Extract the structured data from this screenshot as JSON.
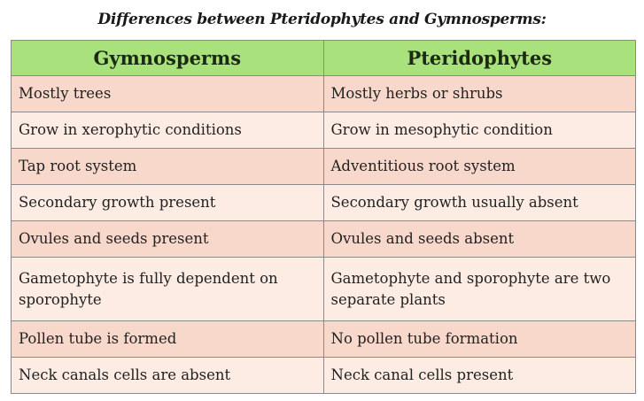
{
  "title": "Differences between Pteridophytes and Gymnosperms:",
  "colors": {
    "header": "#a9e27c",
    "row_dark": "#f9d8cc",
    "row_light": "#fdece4"
  },
  "table": {
    "headers": [
      "Gymnosperms",
      "Pteridophytes"
    ],
    "rows": [
      [
        "Mostly trees",
        "Mostly herbs or shrubs"
      ],
      [
        "Grow in xerophytic conditions",
        "Grow in mesophytic condition"
      ],
      [
        "Tap root system",
        "Adventitious root system"
      ],
      [
        "Secondary growth present",
        "Secondary growth usually absent"
      ],
      [
        "Ovules and seeds present",
        "Ovules and seeds absent"
      ],
      [
        "Gametophyte is fully dependent on sporophyte",
        "Gametophyte and sporophyte are two separate plants"
      ],
      [
        "Pollen tube is formed",
        "No pollen tube formation"
      ],
      [
        "Neck canals cells are absent",
        "Neck canal cells present"
      ]
    ]
  }
}
